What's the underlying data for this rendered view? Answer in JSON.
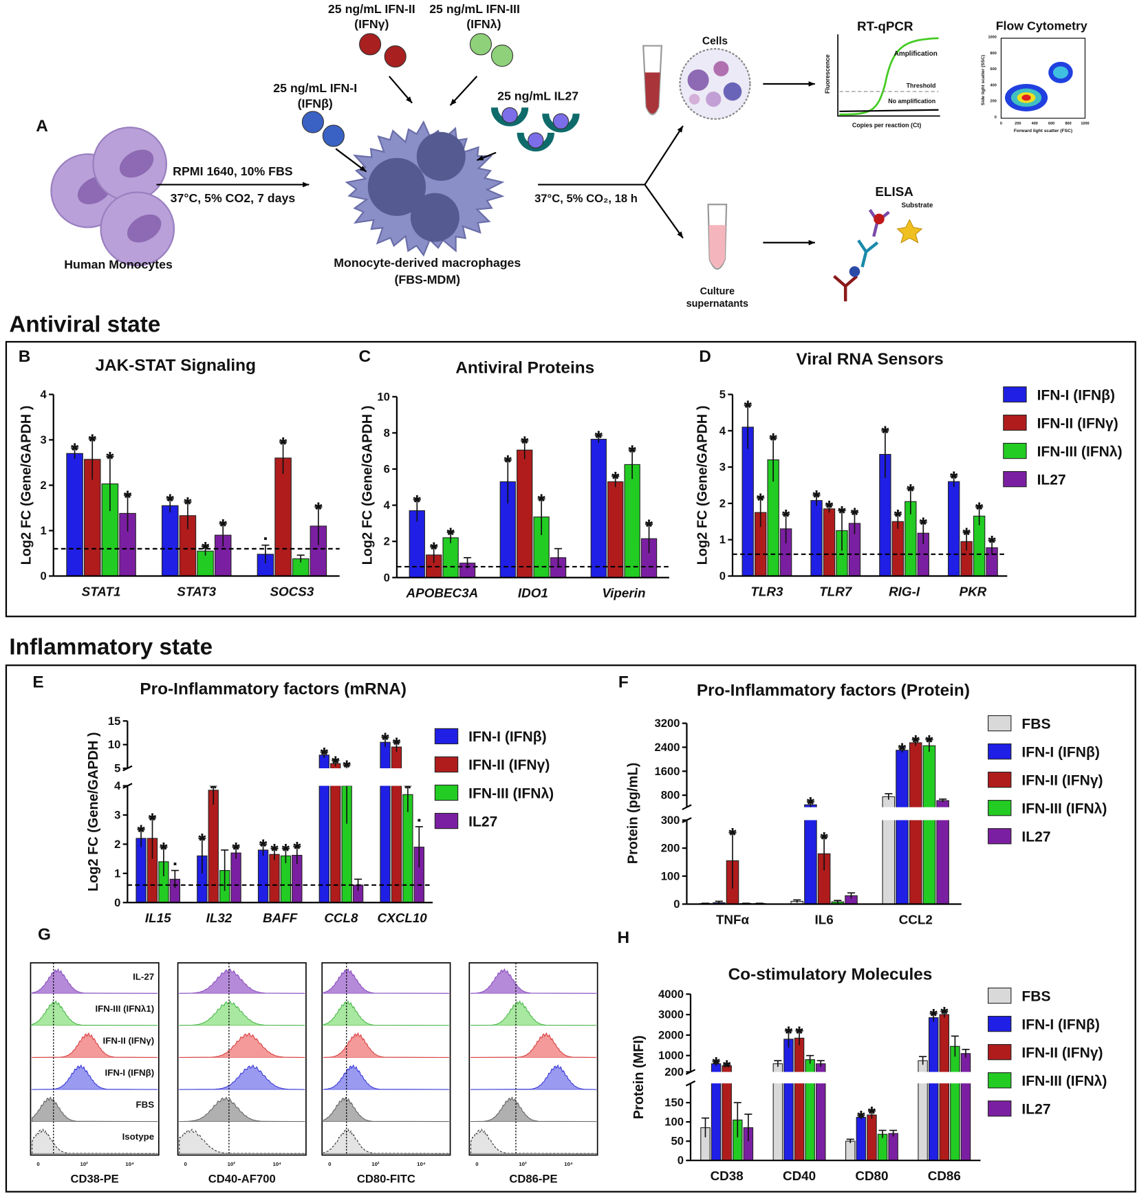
{
  "panel_a": {
    "label": "A",
    "human_monocytes": "Human Monocytes",
    "culture_1": "RPMI 1640, 10% FBS",
    "culture_2": "37°C, 5% CO2, 7 days",
    "ifn1": "25 ng/mL IFN-I",
    "ifn1_sub": "(IFNβ)",
    "ifn2": "25 ng/mL IFN-II",
    "ifn2_sub": "(IFNγ)",
    "ifn3": "25 ng/mL IFN-III",
    "ifn3_sub": "(IFNλ)",
    "il27": "25 ng/mL IL27",
    "mdm_1": "Monocyte-derived macrophages",
    "mdm_2": "(FBS-MDM)",
    "incubation": "37°C, 5% CO₂, 18 h",
    "cells": "Cells",
    "supernatant_1": "Culture",
    "supernatant_2": "supernatants",
    "rtqpcr": {
      "title": "RT-qPCR",
      "amplification": "Amplification",
      "threshold": "Threshold",
      "no_amplification": "No amplification",
      "ylabel": "Fluorescence",
      "xlabel": "Copies per reaction (Ct)"
    },
    "flow": {
      "title": "Flow Cytometry",
      "ylabel": "Side light scatter (SSC)",
      "xlabel": "Forward light scatter (FSC)",
      "ticks": [
        "0",
        "200",
        "400",
        "600",
        "800",
        "1000"
      ]
    },
    "elisa": {
      "title": "ELISA",
      "substrate": "Substrate"
    }
  },
  "sections": [
    "Antiviral state",
    "Inflammatory state"
  ],
  "chart_data": [
    {
      "type": "bar",
      "label": "B",
      "title": "JAK-STAT Signaling",
      "ylabel": "Log2 FC (Gene/GAPDH )",
      "categories": [
        "STAT1",
        "STAT3",
        "SOCS3"
      ],
      "ylim": [
        0,
        4
      ],
      "yticks": [
        0,
        1,
        2,
        3,
        4
      ],
      "reference_line": 0.6,
      "legend": false,
      "series": [
        {
          "color": "#1f1fe6",
          "values": [
            2.7,
            1.55,
            0.48
          ],
          "errors": [
            0.12,
            0.15,
            0.2
          ],
          "significance": [
            "*",
            "*",
            "▪"
          ]
        },
        {
          "color": "#b01c1c",
          "values": [
            2.57,
            1.33,
            2.6
          ],
          "errors": [
            0.45,
            0.3,
            0.35
          ],
          "significance": [
            "*",
            "*",
            "*"
          ]
        },
        {
          "color": "#22cc22",
          "values": [
            2.03,
            0.55,
            0.38
          ],
          "errors": [
            0.6,
            0.1,
            0.08
          ],
          "significance": [
            "*",
            "*",
            null
          ]
        },
        {
          "color": "#7b1fa2",
          "values": [
            1.38,
            0.9,
            1.1
          ],
          "errors": [
            0.4,
            0.25,
            0.42
          ],
          "significance": [
            "*",
            "*",
            "*"
          ]
        }
      ]
    },
    {
      "type": "bar",
      "label": "C",
      "title": "Antiviral Proteins",
      "ylabel": "Log2 FC (Gene/GAPDH )",
      "categories": [
        "APOBEC3A",
        "IDO1",
        "Viperin"
      ],
      "ylim": [
        0,
        10
      ],
      "yticks": [
        0,
        2,
        4,
        6,
        8,
        10
      ],
      "reference_line": 0.6,
      "legend": false,
      "series": [
        {
          "color": "#1f1fe6",
          "values": [
            3.7,
            5.3,
            7.65
          ],
          "errors": [
            0.6,
            1.2,
            0.2
          ],
          "significance": [
            "*",
            "*",
            "*"
          ]
        },
        {
          "color": "#b01c1c",
          "values": [
            1.25,
            7.05,
            5.3
          ],
          "errors": [
            0.45,
            0.5,
            0.3
          ],
          "significance": [
            "*",
            "*",
            "*"
          ]
        },
        {
          "color": "#22cc22",
          "values": [
            2.2,
            3.35,
            6.25
          ],
          "errors": [
            0.3,
            1.0,
            0.8
          ],
          "significance": [
            "*",
            "*",
            "*"
          ]
        },
        {
          "color": "#7b1fa2",
          "values": [
            0.8,
            1.1,
            2.15
          ],
          "errors": [
            0.3,
            0.5,
            0.8
          ],
          "significance": [
            null,
            null,
            "*"
          ]
        }
      ]
    },
    {
      "type": "bar",
      "label": "D",
      "title": "Viral RNA Sensors",
      "ylabel": "Log2 FC (Gene/GAPDH )",
      "categories": [
        "TLR3",
        "TLR7",
        "RIG-I",
        "PKR"
      ],
      "ylim": [
        0,
        5
      ],
      "yticks": [
        0,
        1,
        2,
        3,
        4,
        5
      ],
      "reference_line": 0.6,
      "legend": true,
      "series": [
        {
          "name": "IFN-I (IFNβ)",
          "color": "#1f1fe6",
          "values": [
            4.1,
            2.08,
            3.35,
            2.6
          ],
          "errors": [
            0.6,
            0.15,
            0.65,
            0.15
          ],
          "significance": [
            "*",
            "*",
            "*",
            "*"
          ]
        },
        {
          "name": "IFN-II (IFNγ)",
          "color": "#b01c1c",
          "values": [
            1.75,
            1.85,
            1.5,
            0.95
          ],
          "errors": [
            0.4,
            0.1,
            0.2,
            0.25
          ],
          "significance": [
            "*",
            "*",
            "*",
            "*"
          ]
        },
        {
          "name": "IFN-III (IFNλ)",
          "color": "#22cc22",
          "values": [
            3.2,
            1.25,
            2.05,
            1.65
          ],
          "errors": [
            0.6,
            0.55,
            0.35,
            0.25
          ],
          "significance": [
            "*",
            "*",
            "*",
            "*"
          ]
        },
        {
          "name": "IL27",
          "color": "#7b1fa2",
          "values": [
            1.3,
            1.45,
            1.18,
            0.78
          ],
          "errors": [
            0.4,
            0.3,
            0.3,
            0.2
          ],
          "significance": [
            "*",
            "*",
            "*",
            "*"
          ]
        }
      ]
    },
    {
      "type": "bar",
      "label": "E",
      "title": "Pro-Inflammatory factors (mRNA)",
      "ylabel": "Log2 FC (Gene/GAPDH )",
      "categories": [
        "IL15",
        "IL32",
        "BAFF",
        "CCL8",
        "CXCL10"
      ],
      "axis_segments": [
        {
          "ylim": [
            0,
            4
          ],
          "yticks": [
            0,
            1,
            2,
            3,
            4
          ]
        },
        {
          "ylim": [
            5,
            15
          ],
          "yticks": [
            5,
            10,
            15
          ]
        }
      ],
      "reference_line": 0.6,
      "legend": true,
      "series": [
        {
          "name": "IFN-I (IFNβ)",
          "color": "#1f1fe6",
          "values": [
            2.2,
            1.6,
            1.8,
            7.8,
            10.5
          ],
          "errors": [
            0.3,
            0.6,
            0.2,
            0.6,
            1
          ],
          "significance": [
            "*",
            "*",
            "*",
            "*",
            "*"
          ]
        },
        {
          "name": "IFN-II (IFNγ)",
          "color": "#b01c1c",
          "values": [
            2.2,
            3.85,
            1.65,
            6,
            9.5
          ],
          "errors": [
            0.7,
            0.5,
            0.2,
            0.6,
            1
          ],
          "significance": [
            "*",
            "*",
            "*",
            "*",
            "*"
          ]
        },
        {
          "name": "IFN-III (IFNλ)",
          "color": "#22cc22",
          "values": [
            1.4,
            1.1,
            1.6,
            4.2,
            3.7
          ],
          "errors": [
            0.5,
            0.7,
            0.25,
            1.5,
            0.6
          ],
          "significance": [
            "*",
            null,
            "*",
            "*",
            "*"
          ]
        },
        {
          "name": "IL27",
          "color": "#7b1fa2",
          "values": [
            0.8,
            1.7,
            1.62,
            0.6,
            1.9
          ],
          "errors": [
            0.3,
            0.2,
            0.3,
            0.2,
            0.7
          ],
          "significance": [
            "▪",
            "*",
            "*",
            null,
            "▪"
          ]
        }
      ]
    },
    {
      "type": "bar",
      "label": "F",
      "title": "Pro-Inflammatory factors (Protein)",
      "ylabel": "Protein (pg/mL)",
      "categories": [
        "TNFα",
        "IL6",
        "CCL2"
      ],
      "axis_segments": [
        {
          "ylim": [
            0,
            300
          ],
          "yticks": [
            0,
            100,
            200,
            300
          ]
        },
        {
          "ylim": [
            400,
            3200
          ],
          "yticks": [
            800,
            1600,
            2400,
            3200
          ]
        }
      ],
      "legend": true,
      "series": [
        {
          "name": "FBS",
          "color": "#d9d9d9",
          "values": [
            2,
            10,
            750
          ],
          "errors": [
            1,
            5,
            100
          ],
          "significance": [
            null,
            null,
            null
          ]
        },
        {
          "name": "IFN-I (IFNβ)",
          "color": "#1f1fe6",
          "values": [
            5,
            480,
            2300
          ],
          "errors": [
            5,
            100,
            80
          ],
          "significance": [
            null,
            "*",
            "*"
          ]
        },
        {
          "name": "IFN-II (IFNγ)",
          "color": "#b01c1c",
          "values": [
            155,
            180,
            2550
          ],
          "errors": [
            100,
            60,
            100
          ],
          "significance": [
            "*",
            "*",
            "*"
          ]
        },
        {
          "name": "IFN-III (IFNλ)",
          "color": "#22cc22",
          "values": [
            2,
            8,
            2450
          ],
          "errors": [
            1,
            5,
            200
          ],
          "significance": [
            null,
            null,
            "*"
          ]
        },
        {
          "name": "IL27",
          "color": "#7b1fa2",
          "values": [
            2,
            30,
            620
          ],
          "errors": [
            1,
            10,
            50
          ],
          "significance": [
            null,
            null,
            null
          ]
        }
      ]
    },
    {
      "type": "bar",
      "label": "H",
      "title": "Co-stimulatory Molecules",
      "ylabel": "Protein (MFI)",
      "categories": [
        "CD38",
        "CD40",
        "CD80",
        "CD86"
      ],
      "axis_segments": [
        {
          "ylim": [
            0,
            200
          ],
          "yticks": [
            0,
            50,
            100,
            150,
            200
          ]
        },
        {
          "ylim": [
            200,
            4000
          ],
          "yticks": [
            1000,
            2000,
            3000,
            4000
          ]
        }
      ],
      "legend": true,
      "series": [
        {
          "name": "FBS",
          "color": "#d9d9d9",
          "values": [
            85,
            600,
            50,
            750
          ],
          "errors": [
            25,
            150,
            5,
            200
          ],
          "significance": [
            null,
            null,
            null,
            null
          ]
        },
        {
          "name": "IFN-I (IFNβ)",
          "color": "#1f1fe6",
          "values": [
            600,
            1800,
            112,
            2850
          ],
          "errors": [
            100,
            400,
            5,
            200
          ],
          "significance": [
            "*",
            "*",
            "*",
            "*"
          ]
        },
        {
          "name": "IFN-II (IFNγ)",
          "color": "#b01c1c",
          "values": [
            500,
            1850,
            118,
            3000
          ],
          "errors": [
            50,
            350,
            10,
            150
          ],
          "significance": [
            "*",
            "*",
            "*",
            "*"
          ]
        },
        {
          "name": "IFN-III (IFNλ)",
          "color": "#22cc22",
          "values": [
            105,
            800,
            68,
            1450
          ],
          "errors": [
            45,
            200,
            10,
            500
          ],
          "significance": [
            null,
            null,
            null,
            null
          ]
        },
        {
          "name": "IL27",
          "color": "#7b1fa2",
          "values": [
            85,
            600,
            70,
            1100
          ],
          "errors": [
            35,
            150,
            8,
            200
          ],
          "significance": [
            null,
            null,
            null,
            null
          ]
        }
      ]
    }
  ],
  "panel_g": {
    "label": "G",
    "rows": [
      "IL-27",
      "IFN-III (IFNλ1)",
      "IFN-II (IFNγ)",
      "IFN-I (IFNβ)",
      "FBS",
      "Isotype"
    ],
    "markers": [
      "CD38-PE",
      "CD40-AF700",
      "CD80-FITC",
      "CD86-PE"
    ],
    "axis_labels": [
      "0",
      "10²",
      "10⁴"
    ]
  }
}
